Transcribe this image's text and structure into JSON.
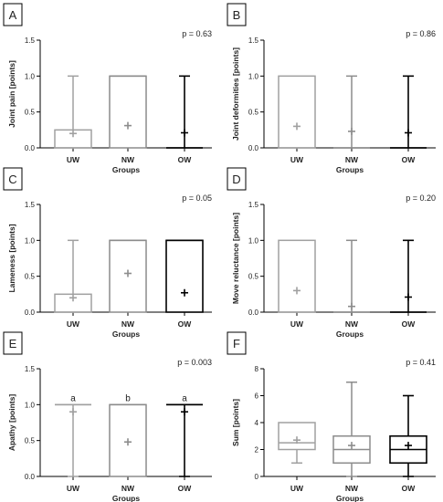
{
  "colors": {
    "UW": "#a0a0a0",
    "NW": "#8c8c8c",
    "OW": "#000000",
    "axis": "#000000"
  },
  "chart_data": [
    {
      "panel": "A",
      "type": "box",
      "p_value": "p = 0.63",
      "xlabel": "Groups",
      "ylabel": "Joint pain [points]",
      "ylim": [
        0,
        1.5
      ],
      "yticks": [
        "0.0",
        "0.5",
        "1.0",
        "1.5"
      ],
      "categories": [
        "UW",
        "NW",
        "OW"
      ],
      "boxes": [
        {
          "group": "UW",
          "min": 0,
          "q1": 0,
          "median": 0,
          "q3": 0.25,
          "max": 1,
          "mean": 0.2
        },
        {
          "group": "NW",
          "min": 0,
          "q1": 0,
          "median": 1,
          "q3": 1,
          "max": 1,
          "mean": 0.31
        },
        {
          "group": "OW",
          "min": 0,
          "q1": 0,
          "median": 0,
          "q3": 0,
          "max": 1,
          "mean": 0.21
        }
      ],
      "annotations": []
    },
    {
      "panel": "B",
      "type": "box",
      "p_value": "p = 0.86",
      "xlabel": "Groups",
      "ylabel": "Joint deformities [points]",
      "ylim": [
        0,
        1.5
      ],
      "yticks": [
        "0.0",
        "0.5",
        "1.0",
        "1.5"
      ],
      "categories": [
        "UW",
        "NW",
        "OW"
      ],
      "boxes": [
        {
          "group": "UW",
          "min": 0,
          "q1": 0,
          "median": 0,
          "q3": 1,
          "max": 1,
          "mean": 0.3
        },
        {
          "group": "NW",
          "min": 0,
          "q1": 0,
          "median": 0,
          "q3": 0,
          "max": 1,
          "mean": 0.23
        },
        {
          "group": "OW",
          "min": 0,
          "q1": 0,
          "median": 0,
          "q3": 0,
          "max": 1,
          "mean": 0.21
        }
      ],
      "annotations": []
    },
    {
      "panel": "C",
      "type": "box",
      "p_value": "p = 0.05",
      "xlabel": "Groups",
      "ylabel": "Lameness [points]",
      "ylim": [
        0,
        1.5
      ],
      "yticks": [
        "0.0",
        "0.5",
        "1.0",
        "1.5"
      ],
      "categories": [
        "UW",
        "NW",
        "OW"
      ],
      "boxes": [
        {
          "group": "UW",
          "min": 0,
          "q1": 0,
          "median": 0,
          "q3": 0.25,
          "max": 1,
          "mean": 0.2
        },
        {
          "group": "NW",
          "min": 0,
          "q1": 0,
          "median": 1,
          "q3": 1,
          "max": 1,
          "mean": 0.54
        },
        {
          "group": "OW",
          "min": 0,
          "q1": 0,
          "median": 1,
          "q3": 1,
          "max": 1,
          "mean": 0.27
        }
      ],
      "annotations": []
    },
    {
      "panel": "D",
      "type": "box",
      "p_value": "p = 0.20",
      "xlabel": "Groups",
      "ylabel": "Move reluctance [points]",
      "ylim": [
        0,
        1.5
      ],
      "yticks": [
        "0.0",
        "0.5",
        "1.0",
        "1.5"
      ],
      "categories": [
        "UW",
        "NW",
        "OW"
      ],
      "boxes": [
        {
          "group": "UW",
          "min": 0,
          "q1": 0,
          "median": 0,
          "q3": 1,
          "max": 1,
          "mean": 0.3
        },
        {
          "group": "NW",
          "min": 0,
          "q1": 0,
          "median": 0,
          "q3": 0,
          "max": 1,
          "mean": 0.08
        },
        {
          "group": "OW",
          "min": 0,
          "q1": 0,
          "median": 0,
          "q3": 0,
          "max": 1,
          "mean": 0.21
        }
      ],
      "annotations": []
    },
    {
      "panel": "E",
      "type": "box",
      "p_value": "p = 0.003",
      "xlabel": "Groups",
      "ylabel": "Apathy [points]",
      "ylim": [
        0,
        1.5
      ],
      "yticks": [
        "0.0",
        "0.5",
        "1.0",
        "1.5"
      ],
      "categories": [
        "UW",
        "NW",
        "OW"
      ],
      "boxes": [
        {
          "group": "UW",
          "min": 0,
          "q1": 1,
          "median": 1,
          "q3": 1,
          "max": 1,
          "mean": 0.9
        },
        {
          "group": "NW",
          "min": 0,
          "q1": 0,
          "median": 1,
          "q3": 1,
          "max": 1,
          "mean": 0.48
        },
        {
          "group": "OW",
          "min": 0,
          "q1": 1,
          "median": 1,
          "q3": 1,
          "max": 1,
          "mean": 0.9
        }
      ],
      "annotations": [
        "a",
        "b",
        "a"
      ]
    },
    {
      "panel": "F",
      "type": "box",
      "p_value": "p = 0.41",
      "xlabel": "Groups",
      "ylabel": "Sum [points]",
      "ylim": [
        0,
        8
      ],
      "yticks": [
        "0",
        "2",
        "4",
        "6",
        "8"
      ],
      "categories": [
        "UW",
        "NW",
        "OW"
      ],
      "boxes": [
        {
          "group": "UW",
          "min": 1,
          "q1": 2,
          "median": 2.5,
          "q3": 4,
          "max": 4,
          "mean": 2.7
        },
        {
          "group": "NW",
          "min": 0,
          "q1": 1,
          "median": 2,
          "q3": 3,
          "max": 7,
          "mean": 2.3
        },
        {
          "group": "OW",
          "min": 0,
          "q1": 1,
          "median": 2,
          "q3": 3,
          "max": 6,
          "mean": 2.3
        }
      ],
      "annotations": []
    }
  ]
}
